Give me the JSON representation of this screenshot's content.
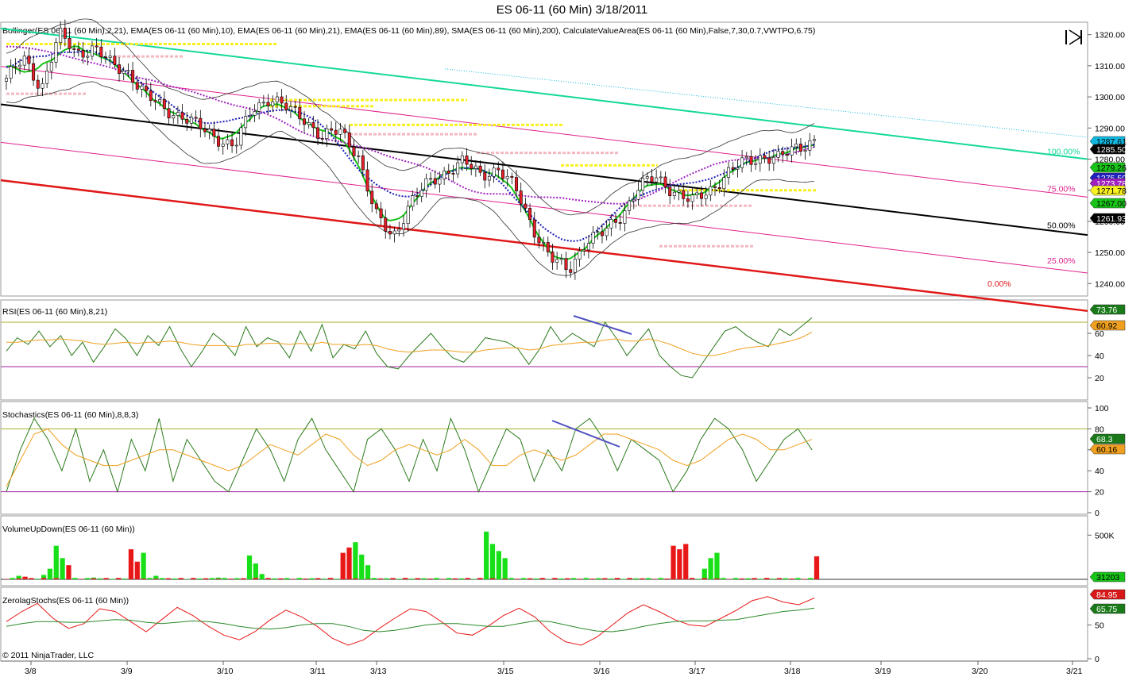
{
  "window": {
    "title": "ES 06-11 (60 Min)  3/18/2011"
  },
  "footer": {
    "copyright": "© 2011 NinjaTrader, LLC"
  },
  "colors": {
    "up_candle": "#ffffff",
    "down_candle": "#e8202a",
    "ema10": "#18c418",
    "ema21": "#1a1ab8",
    "ema89": "#a020c0",
    "sma200": "#10b8e0",
    "channel_mid": "#000000",
    "channel_top": "#14d89a",
    "channel_bottom": "#e01818",
    "channel_pink": "#e0208c",
    "va_yellow": "#f8f020",
    "va_pink": "#f4b8c0",
    "rsi": "#2a7a1a",
    "rsi_avg": "#f0a020",
    "stoch_k": "#2a7a1a",
    "stoch_d": "#f0a020",
    "vol_up": "#18e018",
    "vol_down": "#e81818",
    "zl_fast": "#e81818",
    "zl_slow": "#2a8a2a",
    "divergence": "#5050c0"
  },
  "chart_data": [
    {
      "type": "candlestick",
      "title": "Bollinger(ES 06-11 (60 Min),2,21), EMA(ES 06-11 (60 Min),10), EMA(ES 06-11 (60 Min),21), EMA(ES 06-11 (60 Min),89), SMA(ES 06-11 (60 Min),200), CalculateValueArea(ES 06-11 (60 Min),False,7,30,0.7,VWTPO,6.75)",
      "x_labels": [
        "3/8",
        "3/9",
        "3/10",
        "3/11",
        "3/13",
        "3/15",
        "3/16",
        "3/17",
        "3/18",
        "3/19",
        "3/20",
        "3/21"
      ],
      "y_ticks": [
        "1320.00",
        "1310.00",
        "1300.00",
        "1290.00",
        "1280.00",
        "1270.00",
        "1260.00",
        "1250.00",
        "1240.00"
      ],
      "ylim": [
        1236,
        1324
      ],
      "ohlc_anchor_closes": [
        1306,
        1312,
        1303,
        1320,
        1314,
        1316,
        1310,
        1308,
        1300,
        1296,
        1294,
        1290,
        1287,
        1284,
        1296,
        1300,
        1296,
        1293,
        1287,
        1289,
        1282,
        1262,
        1255,
        1266,
        1272,
        1276,
        1279,
        1275,
        1277,
        1270,
        1258,
        1248,
        1244,
        1254,
        1256,
        1262,
        1271,
        1274,
        1270,
        1266,
        1270,
        1275,
        1279,
        1281,
        1280,
        1284,
        1286
      ],
      "series_tags": [
        {
          "label": "1287.61",
          "color": "#10b8e0",
          "text": "#000"
        },
        {
          "label": "1285.50",
          "color": "#000000",
          "text": "#ffffff"
        },
        {
          "label": "1279.26",
          "color": "#18c418",
          "text": "#000"
        },
        {
          "label": "1275.50",
          "color": "#2020c0",
          "text": "#ffffff"
        },
        {
          "label": "1273.78",
          "color": "#a020c0",
          "text": "#ffffff"
        },
        {
          "label": "1271.78",
          "color": "#f8f020",
          "text": "#000"
        },
        {
          "label": "1267.00",
          "color": "#18c418",
          "text": "#000"
        },
        {
          "label": "1261.93",
          "color": "#000000",
          "text": "#ffffff"
        }
      ],
      "channel_levels": [
        {
          "label": "100.00%",
          "color": "#14d89a"
        },
        {
          "label": "75.00%",
          "color": "#e0208c"
        },
        {
          "label": "50.00%",
          "color": "#000000"
        },
        {
          "label": "25.00%",
          "color": "#e0208c"
        },
        {
          "label": "0.00%",
          "color": "#e01818"
        }
      ]
    },
    {
      "type": "line",
      "title": "RSI(ES 06-11 (60 Min),8,21)",
      "y_ticks": [
        "60",
        "40",
        "20"
      ],
      "ylim": [
        0,
        90
      ],
      "levels": [
        70,
        30
      ],
      "series": [
        {
          "name": "RSI",
          "values": [
            44,
            56,
            50,
            62,
            48,
            58,
            40,
            52,
            34,
            48,
            64,
            55,
            40,
            58,
            49,
            66,
            46,
            30,
            44,
            60,
            52,
            40,
            66,
            48,
            56,
            52,
            38,
            62,
            44,
            68,
            38,
            50,
            46,
            62,
            42,
            30,
            28,
            40,
            50,
            60,
            48,
            38,
            34,
            44,
            56,
            54,
            52,
            46,
            32,
            46,
            66,
            52,
            60,
            54,
            48,
            70,
            56,
            40,
            52,
            64,
            40,
            30,
            22,
            20,
            34,
            48,
            62,
            66,
            58,
            52,
            48,
            64,
            58,
            66,
            74
          ]
        },
        {
          "name": "Average",
          "values": [
            52,
            52,
            53,
            54,
            54,
            55,
            54,
            53,
            51,
            50,
            51,
            52,
            51,
            52,
            52,
            53,
            52,
            50,
            49,
            49,
            49,
            48,
            50,
            50,
            51,
            51,
            50,
            51,
            50,
            52,
            50,
            50,
            49,
            50,
            49,
            46,
            44,
            43,
            44,
            45,
            45,
            44,
            43,
            43,
            45,
            46,
            47,
            47,
            45,
            46,
            49,
            50,
            51,
            52,
            52,
            54,
            55,
            53,
            53,
            55,
            53,
            50,
            46,
            42,
            40,
            40,
            42,
            45,
            47,
            48,
            49,
            51,
            53,
            56,
            61
          ]
        }
      ],
      "series_tags": [
        {
          "label": "73.76",
          "color": "#1a7a1a",
          "text": "#ffffff"
        },
        {
          "label": "60.92",
          "color": "#f0a020",
          "text": "#000"
        }
      ]
    },
    {
      "type": "line",
      "title": "Stochastics(ES 06-11 (60 Min),8,8,3)",
      "y_ticks": [
        "100",
        "80",
        "60",
        "40",
        "20",
        "0"
      ],
      "ylim": [
        0,
        100
      ],
      "levels": [
        80,
        20
      ],
      "series": [
        {
          "name": "K",
          "values": [
            20,
            60,
            90,
            70,
            40,
            80,
            30,
            60,
            20,
            70,
            40,
            90,
            30,
            70,
            50,
            30,
            20,
            50,
            80,
            60,
            30,
            70,
            90,
            60,
            40,
            20,
            70,
            80,
            60,
            30,
            70,
            40,
            90,
            60,
            20,
            50,
            80,
            70,
            30,
            60,
            40,
            80,
            90,
            70,
            40,
            70,
            60,
            50,
            20,
            40,
            70,
            90,
            80,
            60,
            30,
            50,
            70,
            80,
            60
          ]
        },
        {
          "name": "D",
          "values": [
            25,
            50,
            75,
            80,
            65,
            55,
            50,
            45,
            45,
            50,
            55,
            60,
            60,
            55,
            50,
            45,
            40,
            45,
            55,
            65,
            60,
            55,
            65,
            75,
            70,
            55,
            45,
            50,
            60,
            65,
            60,
            55,
            60,
            70,
            60,
            45,
            45,
            55,
            60,
            55,
            50,
            55,
            65,
            75,
            75,
            70,
            65,
            60,
            50,
            45,
            50,
            60,
            70,
            75,
            70,
            60,
            60,
            65,
            70
          ]
        }
      ],
      "series_tags": [
        {
          "label": "68.3",
          "color": "#1a7a1a",
          "text": "#ffffff"
        },
        {
          "label": "60.16",
          "color": "#f0a020",
          "text": "#000"
        }
      ]
    },
    {
      "type": "bar",
      "title": "VolumeUpDown(ES 06-11 (60 Min))",
      "y_ticks": [
        "500K"
      ],
      "ylim": [
        0,
        700000
      ],
      "series": [
        {
          "name": "Up",
          "values": [
            0,
            0,
            40000,
            0,
            0,
            0,
            50000,
            120000,
            380000,
            240000,
            0,
            0,
            0,
            0,
            20000,
            0,
            0,
            0,
            0,
            0,
            0,
            0,
            300000,
            0,
            40000,
            0,
            0,
            0,
            0,
            0,
            0,
            0,
            0,
            0,
            20000,
            0,
            0,
            0,
            0,
            270000,
            180000,
            60000,
            0,
            0,
            0,
            0,
            0,
            0,
            0,
            0,
            0,
            0,
            0,
            0,
            0,
            0,
            420000,
            280000,
            160000,
            0,
            0,
            0,
            0,
            0,
            0,
            0,
            0,
            0,
            0,
            0,
            0,
            0,
            0,
            0,
            0,
            0,
            0,
            540000,
            400000,
            320000,
            240000,
            0,
            0,
            0,
            0,
            0,
            0,
            0,
            0,
            0,
            0,
            0,
            0,
            0,
            0,
            0,
            0,
            0,
            0,
            0,
            0,
            0,
            0,
            0,
            0,
            0,
            0,
            0,
            0,
            0,
            0,
            0,
            120000,
            240000,
            300000,
            0,
            0,
            0,
            0,
            0,
            0,
            0,
            0,
            0,
            0,
            0,
            0,
            0,
            0,
            0,
            80000
          ]
        },
        {
          "name": "Down",
          "values": [
            0,
            0,
            0,
            30000,
            0,
            0,
            0,
            0,
            0,
            0,
            160000,
            0,
            0,
            0,
            0,
            0,
            0,
            0,
            0,
            0,
            340000,
            200000,
            0,
            0,
            0,
            0,
            0,
            0,
            0,
            0,
            0,
            0,
            0,
            0,
            0,
            0,
            0,
            0,
            0,
            0,
            0,
            0,
            0,
            0,
            0,
            0,
            0,
            0,
            0,
            0,
            0,
            0,
            0,
            0,
            300000,
            360000,
            0,
            0,
            0,
            0,
            0,
            0,
            0,
            0,
            0,
            0,
            0,
            0,
            0,
            0,
            0,
            0,
            0,
            0,
            0,
            0,
            0,
            0,
            0,
            0,
            0,
            0,
            0,
            0,
            0,
            0,
            0,
            0,
            0,
            0,
            0,
            0,
            0,
            0,
            0,
            0,
            0,
            0,
            0,
            0,
            0,
            0,
            0,
            0,
            0,
            0,
            0,
            380000,
            340000,
            400000,
            0,
            0,
            0,
            0,
            0,
            0,
            0,
            0,
            0,
            0,
            0,
            0,
            0,
            0,
            0,
            0,
            0,
            0,
            0,
            0,
            260000,
            220000,
            0,
            0,
            0,
            0,
            0,
            0,
            0,
            0,
            0
          ]
        }
      ],
      "series_tags": [
        {
          "label": "31203",
          "color": "#18c418",
          "text": "#000"
        }
      ]
    },
    {
      "type": "line",
      "title": "ZerolagStochs(ES 06-11 (60 Min))",
      "y_ticks": [
        "50",
        "0"
      ],
      "ylim": [
        0,
        100
      ],
      "series": [
        {
          "name": "Fast",
          "values": [
            55,
            70,
            82,
            60,
            45,
            52,
            74,
            70,
            55,
            40,
            58,
            76,
            64,
            48,
            35,
            28,
            40,
            58,
            72,
            62,
            48,
            30,
            20,
            28,
            45,
            60,
            74,
            70,
            55,
            38,
            35,
            48,
            64,
            75,
            62,
            40,
            25,
            20,
            32,
            50,
            68,
            80,
            70,
            58,
            50,
            48,
            60,
            72,
            86,
            92,
            84,
            80,
            90
          ]
        },
        {
          "name": "Slow",
          "values": [
            48,
            52,
            55,
            55,
            54,
            54,
            56,
            58,
            57,
            54,
            52,
            54,
            56,
            55,
            52,
            48,
            45,
            44,
            46,
            50,
            52,
            52,
            48,
            42,
            40,
            42,
            46,
            50,
            52,
            52,
            50,
            48,
            48,
            52,
            56,
            55,
            50,
            45,
            41,
            40,
            43,
            48,
            52,
            55,
            56,
            56,
            57,
            58,
            62,
            66,
            70,
            72,
            75
          ]
        }
      ],
      "series_tags": [
        {
          "label": "84.95",
          "color": "#d81818",
          "text": "#ffffff"
        },
        {
          "label": "65.75",
          "color": "#1a7a1a",
          "text": "#ffffff"
        }
      ]
    }
  ]
}
